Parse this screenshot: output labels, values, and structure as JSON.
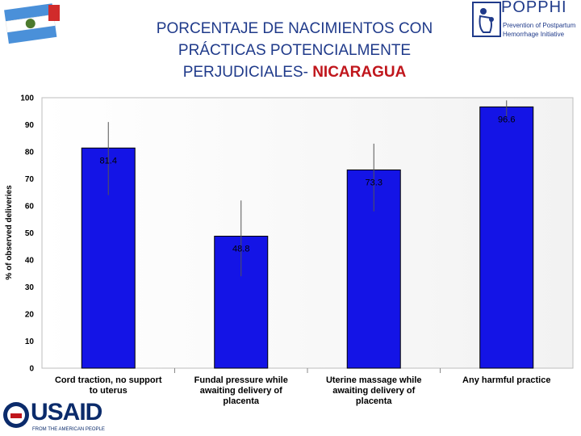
{
  "title": {
    "line1": "PORCENTAJE DE NACIMIENTOS CON",
    "line2": "PRÁCTICAS POTENCIALMENTE",
    "line3_prefix": "PERJUDICIALES- ",
    "line3_accent": "NICARAGUA"
  },
  "logos": {
    "popphi_word": "POPPHI",
    "popphi_sub1": "Prevention of Postpartum",
    "popphi_sub2": "Hemorrhage Initiative",
    "usaid_word": "USAID",
    "usaid_sub": "FROM THE AMERICAN PEOPLE"
  },
  "colors": {
    "bar": "#1414e6",
    "title": "#1f3a8a",
    "accent": "#c0161c",
    "plot_bg": "#ffffff"
  },
  "chart_data": {
    "type": "bar",
    "categories": [
      [
        "Cord traction, no support",
        "to uterus"
      ],
      [
        "Fundal pressure while",
        "awaiting delivery of",
        "placenta"
      ],
      [
        "Uterine massage while",
        "awaiting delivery of",
        "placenta"
      ],
      [
        "Any harmful practice"
      ]
    ],
    "values": [
      81.4,
      48.8,
      73.3,
      96.6
    ],
    "value_labels": [
      "81.4",
      "48.8",
      "73.3",
      "96.6"
    ],
    "error_bars": [
      [
        64,
        91
      ],
      [
        34,
        62
      ],
      [
        58,
        83
      ],
      [
        93,
        99
      ]
    ],
    "ylabel": "% of observed deliveries",
    "ylim": [
      0,
      100
    ],
    "yticks": [
      0,
      10,
      20,
      30,
      40,
      50,
      60,
      70,
      80,
      90,
      100
    ],
    "grid": false,
    "legend": "none"
  }
}
